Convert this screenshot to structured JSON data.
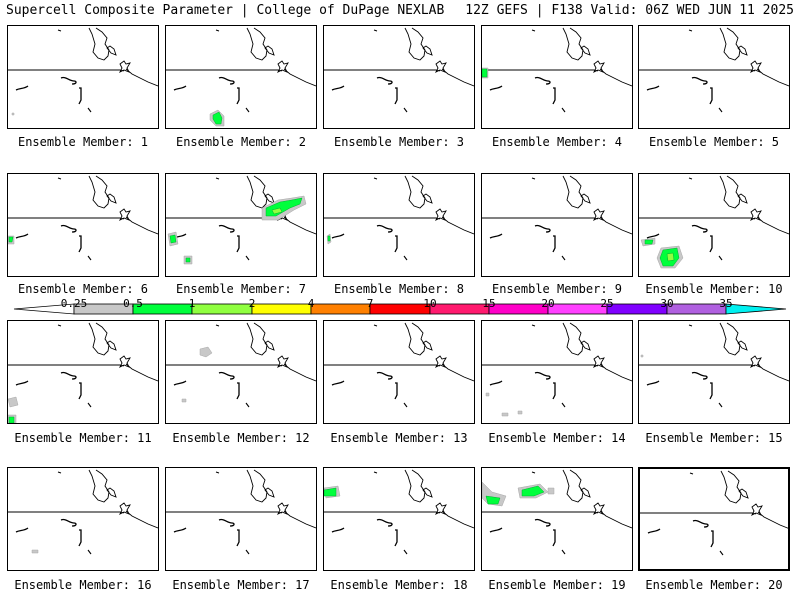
{
  "header": {
    "title": "Supercell Composite Parameter | College of DuPage NEXLAB",
    "run_info": "12Z GEFS | F138 Valid: 06Z WED JUN 11 2025"
  },
  "legend": {
    "ticks": [
      "0.25",
      "0.5",
      "1",
      "2",
      "4",
      "7",
      "10",
      "15",
      "20",
      "25",
      "30",
      "35"
    ],
    "colors": [
      "#c8c8c8",
      "#00ff3c",
      "#90ff40",
      "#ffff00",
      "#ff8000",
      "#ff0000",
      "#ff1a6e",
      "#ff00c8",
      "#ff40ff",
      "#8000ff",
      "#b060e0"
    ],
    "low_color": "#ffffff",
    "high_color": "#00f0f0"
  },
  "panels": [
    {
      "label": "Ensemble Member: 1"
    },
    {
      "label": "Ensemble Member: 2"
    },
    {
      "label": "Ensemble Member: 3"
    },
    {
      "label": "Ensemble Member: 4"
    },
    {
      "label": "Ensemble Member: 5"
    },
    {
      "label": "Ensemble Member: 6"
    },
    {
      "label": "Ensemble Member: 7"
    },
    {
      "label": "Ensemble Member: 8"
    },
    {
      "label": "Ensemble Member: 9"
    },
    {
      "label": "Ensemble Member: 10"
    },
    {
      "label": "Ensemble Member: 11"
    },
    {
      "label": "Ensemble Member: 12"
    },
    {
      "label": "Ensemble Member: 13"
    },
    {
      "label": "Ensemble Member: 14"
    },
    {
      "label": "Ensemble Member: 15"
    },
    {
      "label": "Ensemble Member: 16"
    },
    {
      "label": "Ensemble Member: 17"
    },
    {
      "label": "Ensemble Member: 18"
    },
    {
      "label": "Ensemble Member: 19"
    },
    {
      "label": "Ensemble Member: 20"
    }
  ]
}
